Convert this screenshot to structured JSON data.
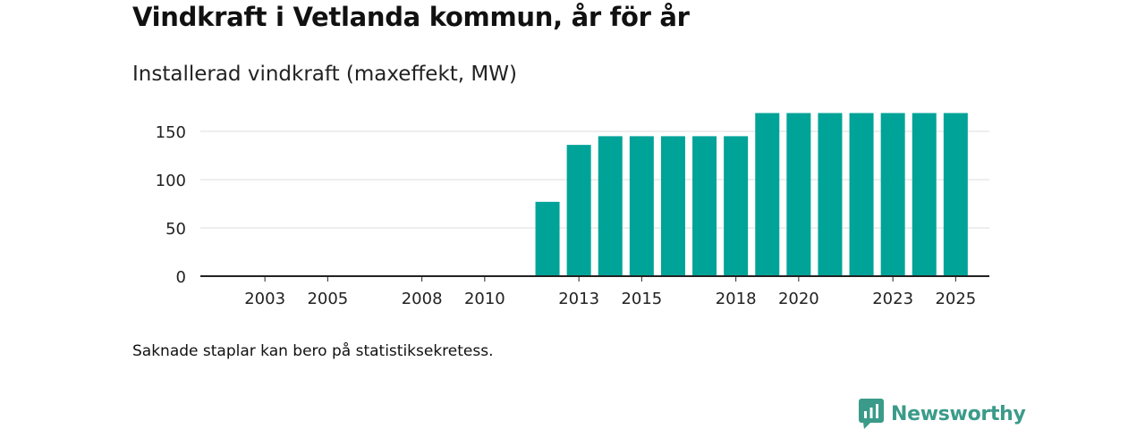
{
  "colors": {
    "bar": "#00a398",
    "grid": "#dddddd",
    "axis": "#222222",
    "brand": "#3b9b8a"
  },
  "chart_data": {
    "type": "bar",
    "title": "Vindkraft i Vetlanda kommun, år för år",
    "subtitle": "Installerad vindkraft (maxeffekt, MW)",
    "categories": [
      "2002",
      "2003",
      "2004",
      "2005",
      "2006",
      "2007",
      "2008",
      "2009",
      "2010",
      "2011",
      "2012",
      "2013",
      "2014",
      "2015",
      "2016",
      "2017",
      "2018",
      "2019",
      "2020",
      "2021",
      "2022",
      "2023",
      "2024",
      "2025"
    ],
    "x_tick_labels": [
      "2003",
      "2005",
      "2008",
      "2010",
      "2013",
      "2015",
      "2018",
      "2020",
      "2023",
      "2025"
    ],
    "values": [
      0,
      0,
      0,
      0,
      0,
      0,
      0,
      0,
      0,
      0,
      77,
      136,
      145,
      145,
      145,
      145,
      145,
      169,
      169,
      169,
      169,
      169,
      169,
      169
    ],
    "y_ticks": [
      0,
      50,
      100,
      150
    ],
    "ylim": [
      0,
      175
    ],
    "xlabel": "",
    "ylabel": ""
  },
  "footnote": "Saknade staplar kan bero på statistiksekretess.",
  "brand": {
    "name": "Newsworthy",
    "icon": "newsworthy-logo-icon"
  }
}
